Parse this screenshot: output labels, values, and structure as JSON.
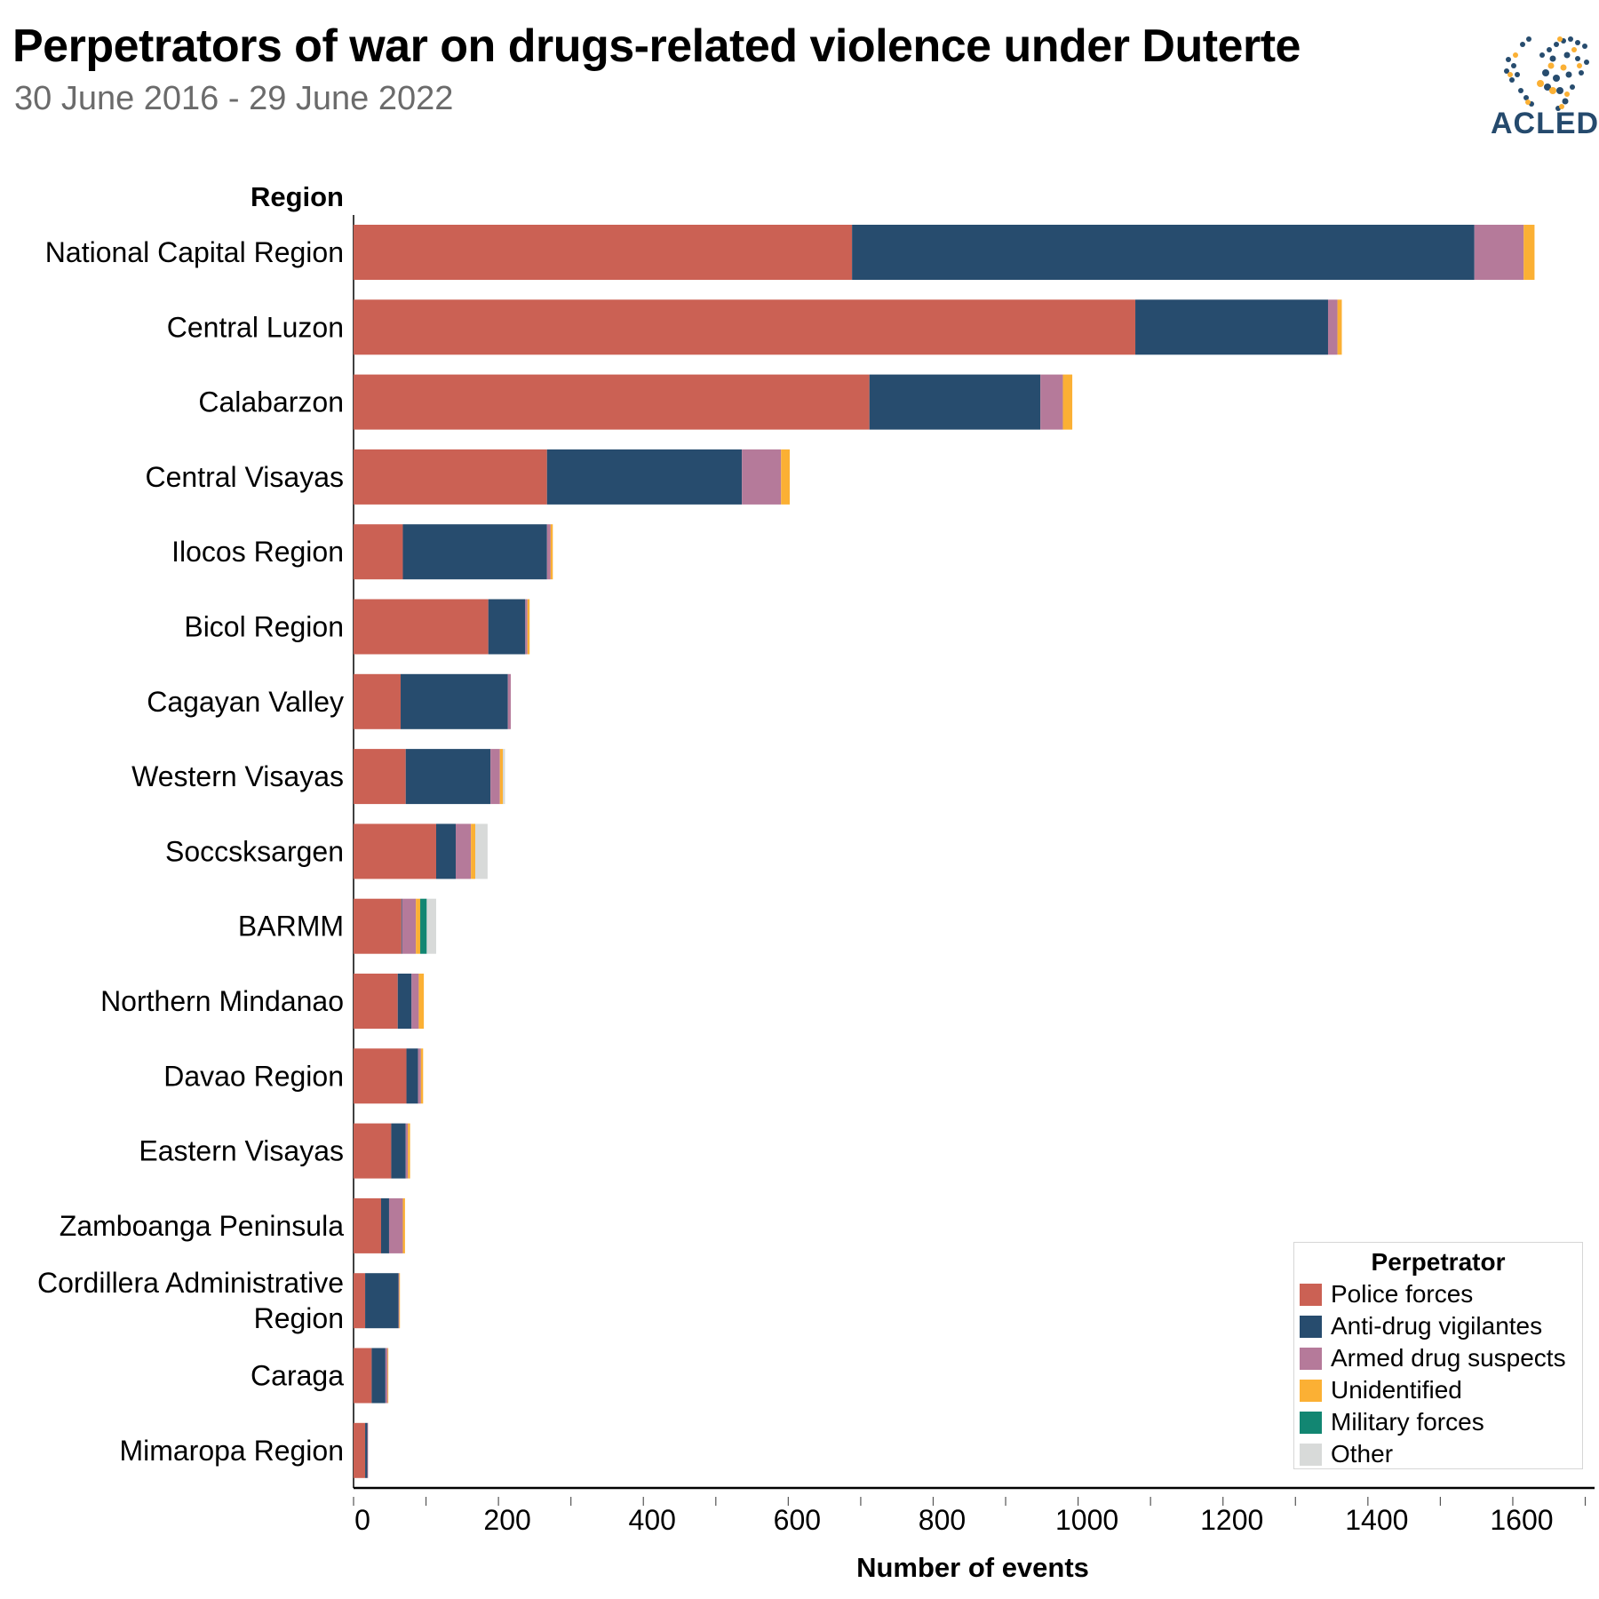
{
  "header": {
    "title": "Perpetrators of war on drugs-related violence under Duterte",
    "subtitle": "30 June 2016 - 29 June 2022",
    "logo_text": "ACLED"
  },
  "chart_data": {
    "type": "bar",
    "orientation": "horizontal",
    "stacked": true,
    "title": "Perpetrators of war on drugs-related violence under Duterte",
    "ylabel": "Region",
    "xlabel": "Number of events",
    "xlim": [
      0,
      1700
    ],
    "xticks": [
      0,
      200,
      400,
      600,
      800,
      1000,
      1200,
      1400,
      1600
    ],
    "legend_title": "Perpetrator",
    "legend_position": "bottom-right",
    "categories": [
      "National Capital Region",
      "Central Luzon",
      "Calabarzon",
      "Central Visayas",
      "Ilocos Region",
      "Bicol Region",
      "Cagayan Valley",
      "Western Visayas",
      "Soccsksargen",
      "BARMM",
      "Northern Mindanao",
      "Davao Region",
      "Eastern Visayas",
      "Zamboanga Peninsula",
      "Cordillera Administrative Region",
      "Caraga",
      "Mimaropa Region"
    ],
    "category_lines": [
      [
        "National Capital Region"
      ],
      [
        "Central Luzon"
      ],
      [
        "Calabarzon"
      ],
      [
        "Central Visayas"
      ],
      [
        "Ilocos Region"
      ],
      [
        "Bicol Region"
      ],
      [
        "Cagayan Valley"
      ],
      [
        "Western Visayas"
      ],
      [
        "Soccsksargen"
      ],
      [
        "BARMM"
      ],
      [
        "Northern Mindanao"
      ],
      [
        "Davao Region"
      ],
      [
        "Eastern Visayas"
      ],
      [
        "Zamboanga Peninsula"
      ],
      [
        "Cordillera Administrative",
        "Region"
      ],
      [
        "Caraga"
      ],
      [
        "Mimaropa Region"
      ]
    ],
    "series": [
      {
        "name": "Police forces",
        "color": "#cb6154",
        "values": [
          688,
          1079,
          712,
          267,
          68,
          186,
          65,
          72,
          114,
          66,
          61,
          73,
          52,
          38,
          16,
          25,
          16
        ]
      },
      {
        "name": "Anti-drug vigilantes",
        "color": "#274c6e",
        "values": [
          859,
          266,
          236,
          269,
          199,
          51,
          148,
          117,
          27,
          1,
          19,
          16,
          20,
          11,
          46,
          19,
          3
        ]
      },
      {
        "name": "Armed drug suspects",
        "color": "#b57a9a",
        "values": [
          68,
          13,
          31,
          54,
          5,
          3,
          4,
          13,
          21,
          19,
          10,
          4,
          3,
          19,
          1,
          3,
          1
        ]
      },
      {
        "name": "Unidentified",
        "color": "#fbb034",
        "values": [
          15,
          6,
          13,
          12,
          3,
          3,
          0,
          4,
          6,
          6,
          7,
          3,
          3,
          3,
          1,
          1,
          0
        ]
      },
      {
        "name": "Military forces",
        "color": "#128672",
        "values": [
          0,
          0,
          0,
          0,
          0,
          0,
          0,
          0,
          0,
          9,
          0,
          0,
          0,
          0,
          0,
          0,
          0
        ]
      },
      {
        "name": "Other",
        "color": "#d8dad9",
        "values": [
          0,
          0,
          0,
          0,
          0,
          0,
          0,
          3,
          17,
          13,
          0,
          0,
          0,
          0,
          0,
          0,
          0
        ]
      }
    ]
  }
}
